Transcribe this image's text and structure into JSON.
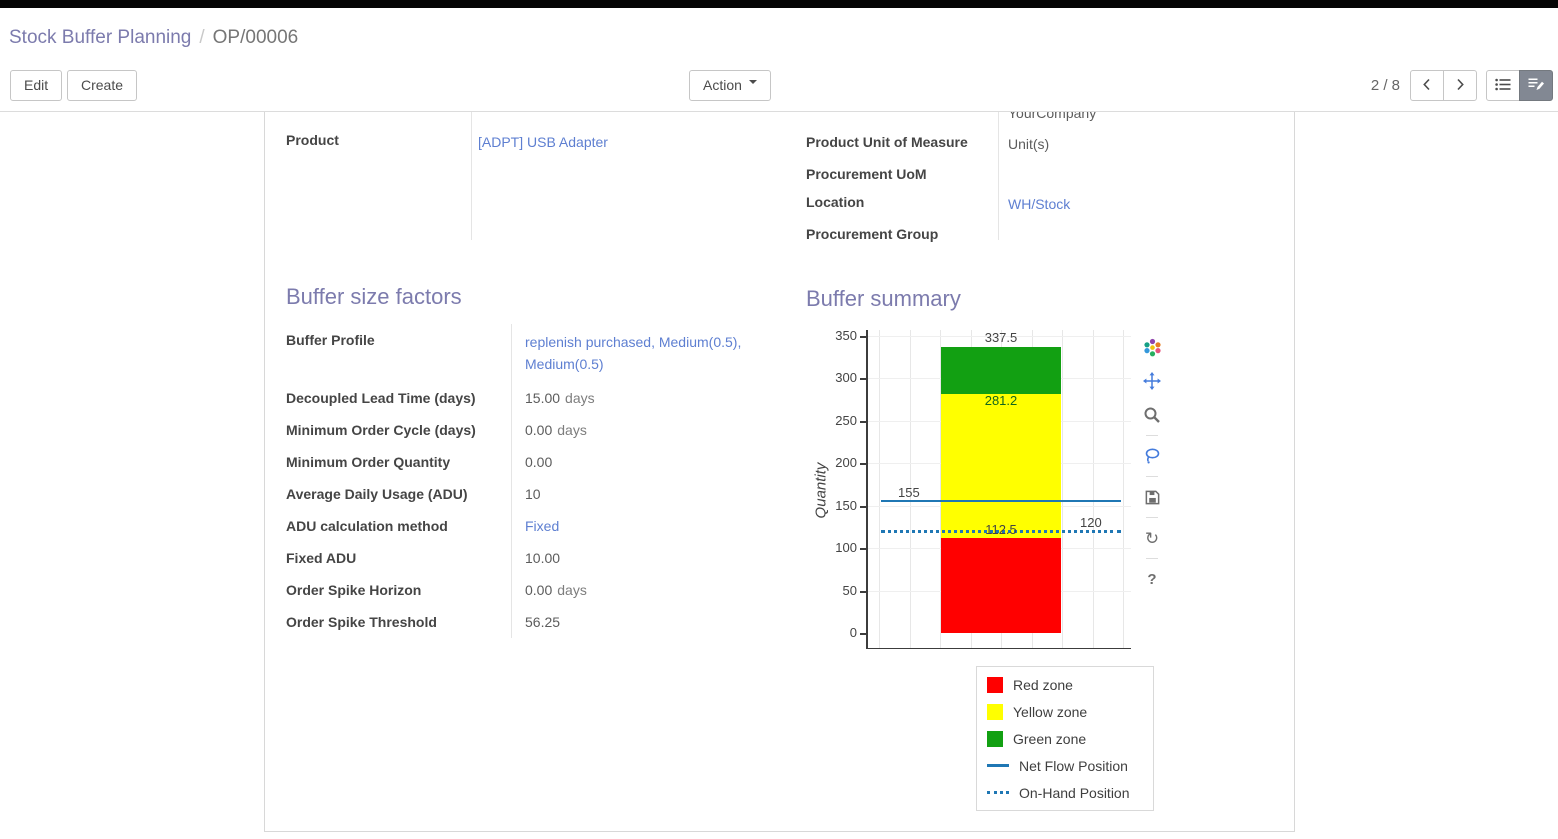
{
  "breadcrumb": {
    "parent": "Stock Buffer Planning",
    "separator": "/",
    "current": "OP/00006"
  },
  "control_panel": {
    "edit_label": "Edit",
    "create_label": "Create",
    "action_label": "Action",
    "pager": "2 / 8",
    "icons": [
      "previous-page-icon",
      "next-page-icon",
      "list-view-icon",
      "form-view-icon"
    ]
  },
  "sheet": {
    "company_partial_value": "YourCompany",
    "product": {
      "label": "Product",
      "value": "[ADPT] USB Adapter"
    },
    "right_fields": [
      {
        "label": "Product Unit of Measure",
        "value": "Unit(s)"
      },
      {
        "label": "Procurement UoM",
        "value": ""
      },
      {
        "label": "Location",
        "value": "WH/Stock"
      },
      {
        "label": "Procurement Group",
        "value": ""
      }
    ],
    "buffer_factors": {
      "title": "Buffer size factors",
      "rows": [
        {
          "label": "Buffer Profile",
          "value": "replenish purchased, Medium(0.5), Medium(0.5)",
          "suffix": "",
          "link": true
        },
        {
          "label": "Decoupled Lead Time (days)",
          "value": "15.00",
          "suffix": "days"
        },
        {
          "label": "Minimum Order Cycle (days)",
          "value": "0.00",
          "suffix": "days"
        },
        {
          "label": "Minimum Order Quantity",
          "value": "0.00",
          "suffix": ""
        },
        {
          "label": "Average Daily Usage (ADU)",
          "value": "10",
          "suffix": ""
        },
        {
          "label": "ADU calculation method",
          "value": "Fixed",
          "suffix": "",
          "link": true
        },
        {
          "label": "Fixed ADU",
          "value": "10.00",
          "suffix": ""
        },
        {
          "label": "Order Spike Horizon",
          "value": "0.00",
          "suffix": "days"
        },
        {
          "label": "Order Spike Threshold",
          "value": "56.25",
          "suffix": ""
        }
      ]
    },
    "buffer_summary": {
      "title": "Buffer summary",
      "chart_toolbar_icons": [
        "plotly-logo-icon",
        "pan-icon",
        "zoom-icon",
        "lasso-icon",
        "save-icon",
        "reset-icon",
        "help-icon"
      ]
    }
  },
  "colors": {
    "heading": "#7c7bad",
    "link": "#5e7fd1",
    "topbar": "#000000",
    "active_view_button": "#828893"
  },
  "chart_data": {
    "type": "bar",
    "title": "Buffer summary",
    "ylabel": "Quantity",
    "ylim": [
      0,
      350
    ],
    "yticks": [
      0,
      50,
      100,
      150,
      200,
      250,
      300,
      350
    ],
    "grid": true,
    "zones": [
      {
        "name": "Red zone",
        "from": 0,
        "to": 112.5,
        "color": "#ff0000",
        "boundary_label": "112.5",
        "label_color": "#444444"
      },
      {
        "name": "Yellow zone",
        "from": 112.5,
        "to": 281.2,
        "color": "#ffff00",
        "boundary_label": "281.2",
        "label_color": "#11661c"
      },
      {
        "name": "Green zone",
        "from": 281.2,
        "to": 337.5,
        "color": "#12a012",
        "boundary_label": "337.5",
        "label_color": "#444444"
      }
    ],
    "lines": [
      {
        "name": "Net Flow Position",
        "value": 155,
        "label": "155",
        "style": "solid",
        "color": "#1f77b4",
        "label_side": "left"
      },
      {
        "name": "On-Hand Position",
        "value": 120,
        "label": "120",
        "style": "dotted",
        "color": "#1f77b4",
        "label_side": "right"
      }
    ],
    "legend": [
      {
        "label": "Red zone",
        "swatch": "square",
        "color": "#ff0000"
      },
      {
        "label": "Yellow zone",
        "swatch": "square",
        "color": "#ffff00"
      },
      {
        "label": "Green zone",
        "swatch": "square",
        "color": "#12a012"
      },
      {
        "label": "Net Flow Position",
        "swatch": "line",
        "color": "#1f77b4"
      },
      {
        "label": "On-Hand Position",
        "swatch": "dotted",
        "color": "#1f77b4"
      }
    ],
    "legend_position": "bottom-right"
  }
}
